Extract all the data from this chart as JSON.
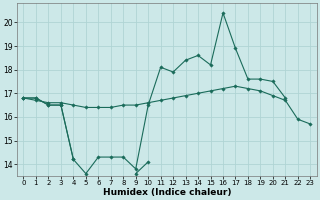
{
  "xlabel": "Humidex (Indice chaleur)",
  "background_color": "#cce8e8",
  "line_color": "#1a6b5a",
  "grid_color": "#b0d4d4",
  "x": [
    0,
    1,
    2,
    3,
    4,
    5,
    6,
    7,
    8,
    9,
    10,
    11,
    12,
    13,
    14,
    15,
    16,
    17,
    18,
    19,
    20,
    21,
    22,
    23
  ],
  "line1": [
    16.8,
    16.8,
    16.5,
    16.5,
    14.2,
    13.6,
    14.3,
    14.3,
    14.3,
    13.8,
    16.5,
    18.1,
    17.9,
    18.4,
    18.6,
    18.2,
    20.4,
    18.9,
    17.6,
    17.6,
    17.5,
    16.8,
    null,
    null
  ],
  "line2": [
    16.8,
    16.8,
    16.5,
    16.5,
    14.2,
    null,
    null,
    null,
    null,
    13.6,
    14.1,
    null,
    null,
    null,
    null,
    null,
    null,
    null,
    null,
    null,
    null,
    null,
    null,
    null
  ],
  "line3": [
    16.8,
    16.7,
    16.6,
    16.6,
    16.5,
    16.4,
    16.4,
    16.4,
    16.5,
    16.5,
    16.6,
    16.7,
    16.8,
    16.9,
    17.0,
    17.1,
    17.2,
    17.3,
    17.2,
    17.1,
    16.9,
    16.7,
    15.9,
    15.7
  ],
  "ylim": [
    13.5,
    20.8
  ],
  "xlim": [
    -0.5,
    23.5
  ],
  "yticks": [
    14,
    15,
    16,
    17,
    18,
    19,
    20
  ],
  "xticks": [
    0,
    1,
    2,
    3,
    4,
    5,
    6,
    7,
    8,
    9,
    10,
    11,
    12,
    13,
    14,
    15,
    16,
    17,
    18,
    19,
    20,
    21,
    22,
    23
  ]
}
